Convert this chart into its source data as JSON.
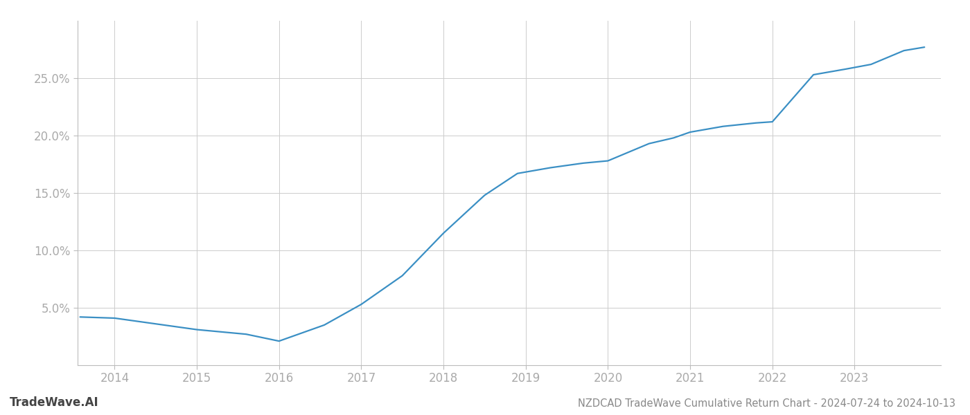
{
  "title": "NZDCAD TradeWave Cumulative Return Chart - 2024-07-24 to 2024-10-13",
  "watermark": "TradeWave.AI",
  "line_color": "#3a8fc4",
  "background_color": "#ffffff",
  "grid_color": "#cccccc",
  "x_values": [
    2013.58,
    2014.0,
    2014.5,
    2015.0,
    2015.6,
    2016.0,
    2016.55,
    2017.0,
    2017.5,
    2018.0,
    2018.5,
    2018.9,
    2019.3,
    2019.7,
    2020.0,
    2020.5,
    2020.8,
    2021.0,
    2021.4,
    2021.8,
    2022.0,
    2022.5,
    2022.9,
    2023.2,
    2023.6,
    2023.85
  ],
  "y_values": [
    4.2,
    4.1,
    3.6,
    3.1,
    2.7,
    2.1,
    3.5,
    5.3,
    7.8,
    11.5,
    14.8,
    16.7,
    17.2,
    17.6,
    17.8,
    19.3,
    19.8,
    20.3,
    20.8,
    21.1,
    21.2,
    25.3,
    25.8,
    26.2,
    27.4,
    27.7
  ],
  "xlim": [
    2013.55,
    2024.05
  ],
  "ylim": [
    0.0,
    30.0
  ],
  "yticks": [
    5.0,
    10.0,
    15.0,
    20.0,
    25.0
  ],
  "xticks": [
    2014,
    2015,
    2016,
    2017,
    2018,
    2019,
    2020,
    2021,
    2022,
    2023
  ],
  "tick_label_color": "#aaaaaa",
  "title_color": "#888888",
  "title_fontsize": 10.5,
  "watermark_fontsize": 12,
  "watermark_color": "#444444",
  "line_width": 1.6,
  "spine_color": "#bbbbbb"
}
